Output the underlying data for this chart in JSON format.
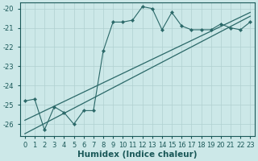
{
  "xlabel": "Humidex (Indice chaleur)",
  "bg_color": "#cce8e8",
  "line_color": "#2a6868",
  "grid_color": "#b0d0d0",
  "xlim": [
    -0.5,
    23.5
  ],
  "ylim": [
    -26.6,
    -19.7
  ],
  "yticks": [
    -26,
    -25,
    -24,
    -23,
    -22,
    -21,
    -20
  ],
  "xticks": [
    0,
    1,
    2,
    3,
    4,
    5,
    6,
    7,
    8,
    9,
    10,
    11,
    12,
    13,
    14,
    15,
    16,
    17,
    18,
    19,
    20,
    21,
    22,
    23
  ],
  "series1_x": [
    0,
    1,
    2,
    3,
    4,
    5,
    6,
    7,
    8,
    9,
    10,
    11,
    12,
    13,
    14,
    15,
    16,
    17,
    18,
    19,
    20,
    21,
    22,
    23
  ],
  "series1_y": [
    -24.8,
    -24.7,
    -26.3,
    -25.1,
    -25.4,
    -26.0,
    -25.3,
    -25.3,
    -22.2,
    -20.7,
    -20.7,
    -20.6,
    -19.9,
    -20.0,
    -21.1,
    -20.2,
    -20.9,
    -21.1,
    -21.1,
    -21.1,
    -20.8,
    -21.0,
    -21.1,
    -20.7
  ],
  "series2_x": [
    0,
    23
  ],
  "series2_y": [
    -26.5,
    -20.4
  ],
  "series3_x": [
    0,
    23
  ],
  "series3_y": [
    -25.8,
    -20.2
  ],
  "font_color": "#1a5858",
  "xlabel_fontsize": 7.5,
  "tick_fontsize": 6
}
